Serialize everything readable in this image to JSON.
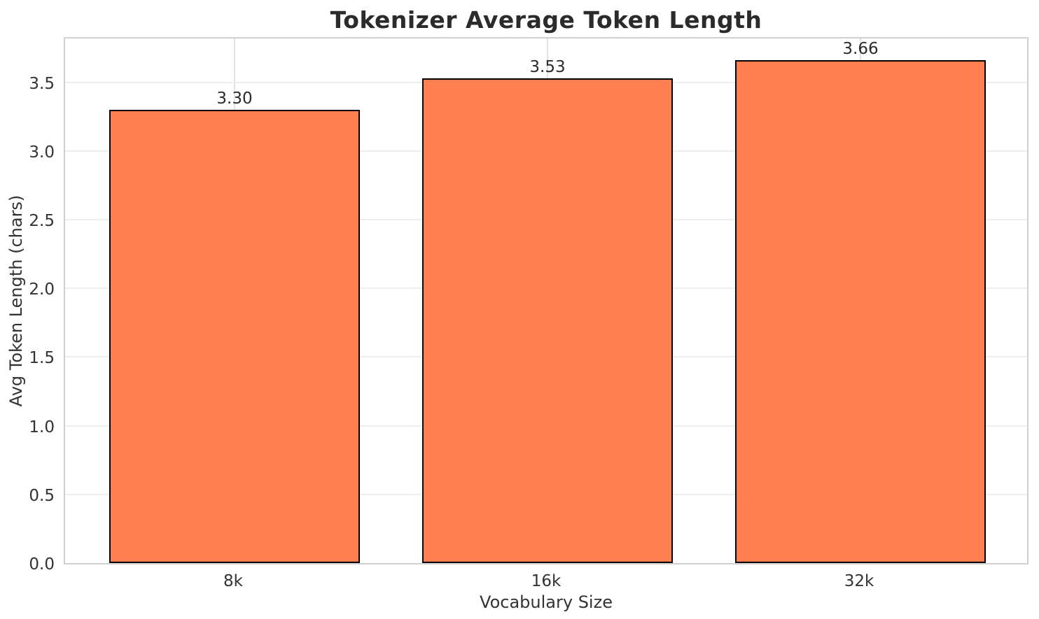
{
  "chart_data": {
    "type": "bar",
    "title": "Tokenizer Average Token Length",
    "xlabel": "Vocabulary Size",
    "ylabel": "Avg Token Length (chars)",
    "categories": [
      "8k",
      "16k",
      "32k"
    ],
    "values": [
      3.3,
      3.53,
      3.66
    ],
    "bar_labels": [
      "3.30",
      "3.53",
      "3.66"
    ],
    "yticks": [
      0.0,
      0.5,
      1.0,
      1.5,
      2.0,
      2.5,
      3.0,
      3.5
    ],
    "ytick_labels": [
      "0.0",
      "0.5",
      "1.0",
      "1.5",
      "2.0",
      "2.5",
      "3.0",
      "3.5"
    ],
    "ylim": [
      0,
      3.84
    ],
    "grid": true,
    "legend": null,
    "colors": {
      "bar_fill": "#FF7F50",
      "bar_edge": "#000000",
      "hgrid": "#eeeeee",
      "vgrid": "#e2e2e2",
      "spine": "#cfcfcf",
      "title_text": "#2b2b2b",
      "tick_text": "#333333",
      "background": "#ffffff"
    }
  }
}
